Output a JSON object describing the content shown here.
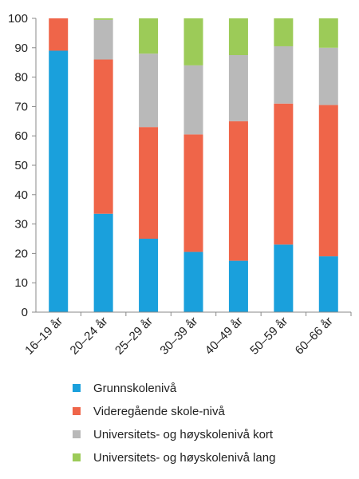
{
  "chart_data": {
    "type": "bar",
    "stacked": true,
    "categories": [
      "16–19 år",
      "20–24 år",
      "25–29 år",
      "30–39 år",
      "40–49 år",
      "50–59 år",
      "60–66 år"
    ],
    "series": [
      {
        "name": "Grunnskolenivå",
        "color": "#1aa0dc",
        "values": [
          89,
          33.5,
          25,
          20.5,
          17.5,
          23,
          19
        ]
      },
      {
        "name": "Videregående skole-nivå",
        "color": "#ef6549",
        "values": [
          11,
          52.5,
          38,
          40,
          47.5,
          48,
          51.5
        ]
      },
      {
        "name": "Universitets- og høyskolenivå kort",
        "color": "#b9b9b9",
        "values": [
          0,
          13.5,
          25,
          23.5,
          22.5,
          19.5,
          19.5
        ]
      },
      {
        "name": "Universitets- og høyskolenivå lang",
        "color": "#9ccb58",
        "values": [
          0,
          0.5,
          12,
          16,
          12.5,
          9.5,
          10
        ]
      }
    ],
    "yticks": [
      0,
      10,
      20,
      30,
      40,
      50,
      60,
      70,
      80,
      90,
      100
    ],
    "ylim": [
      0,
      100
    ],
    "grid": false,
    "legend_position": "bottom"
  }
}
